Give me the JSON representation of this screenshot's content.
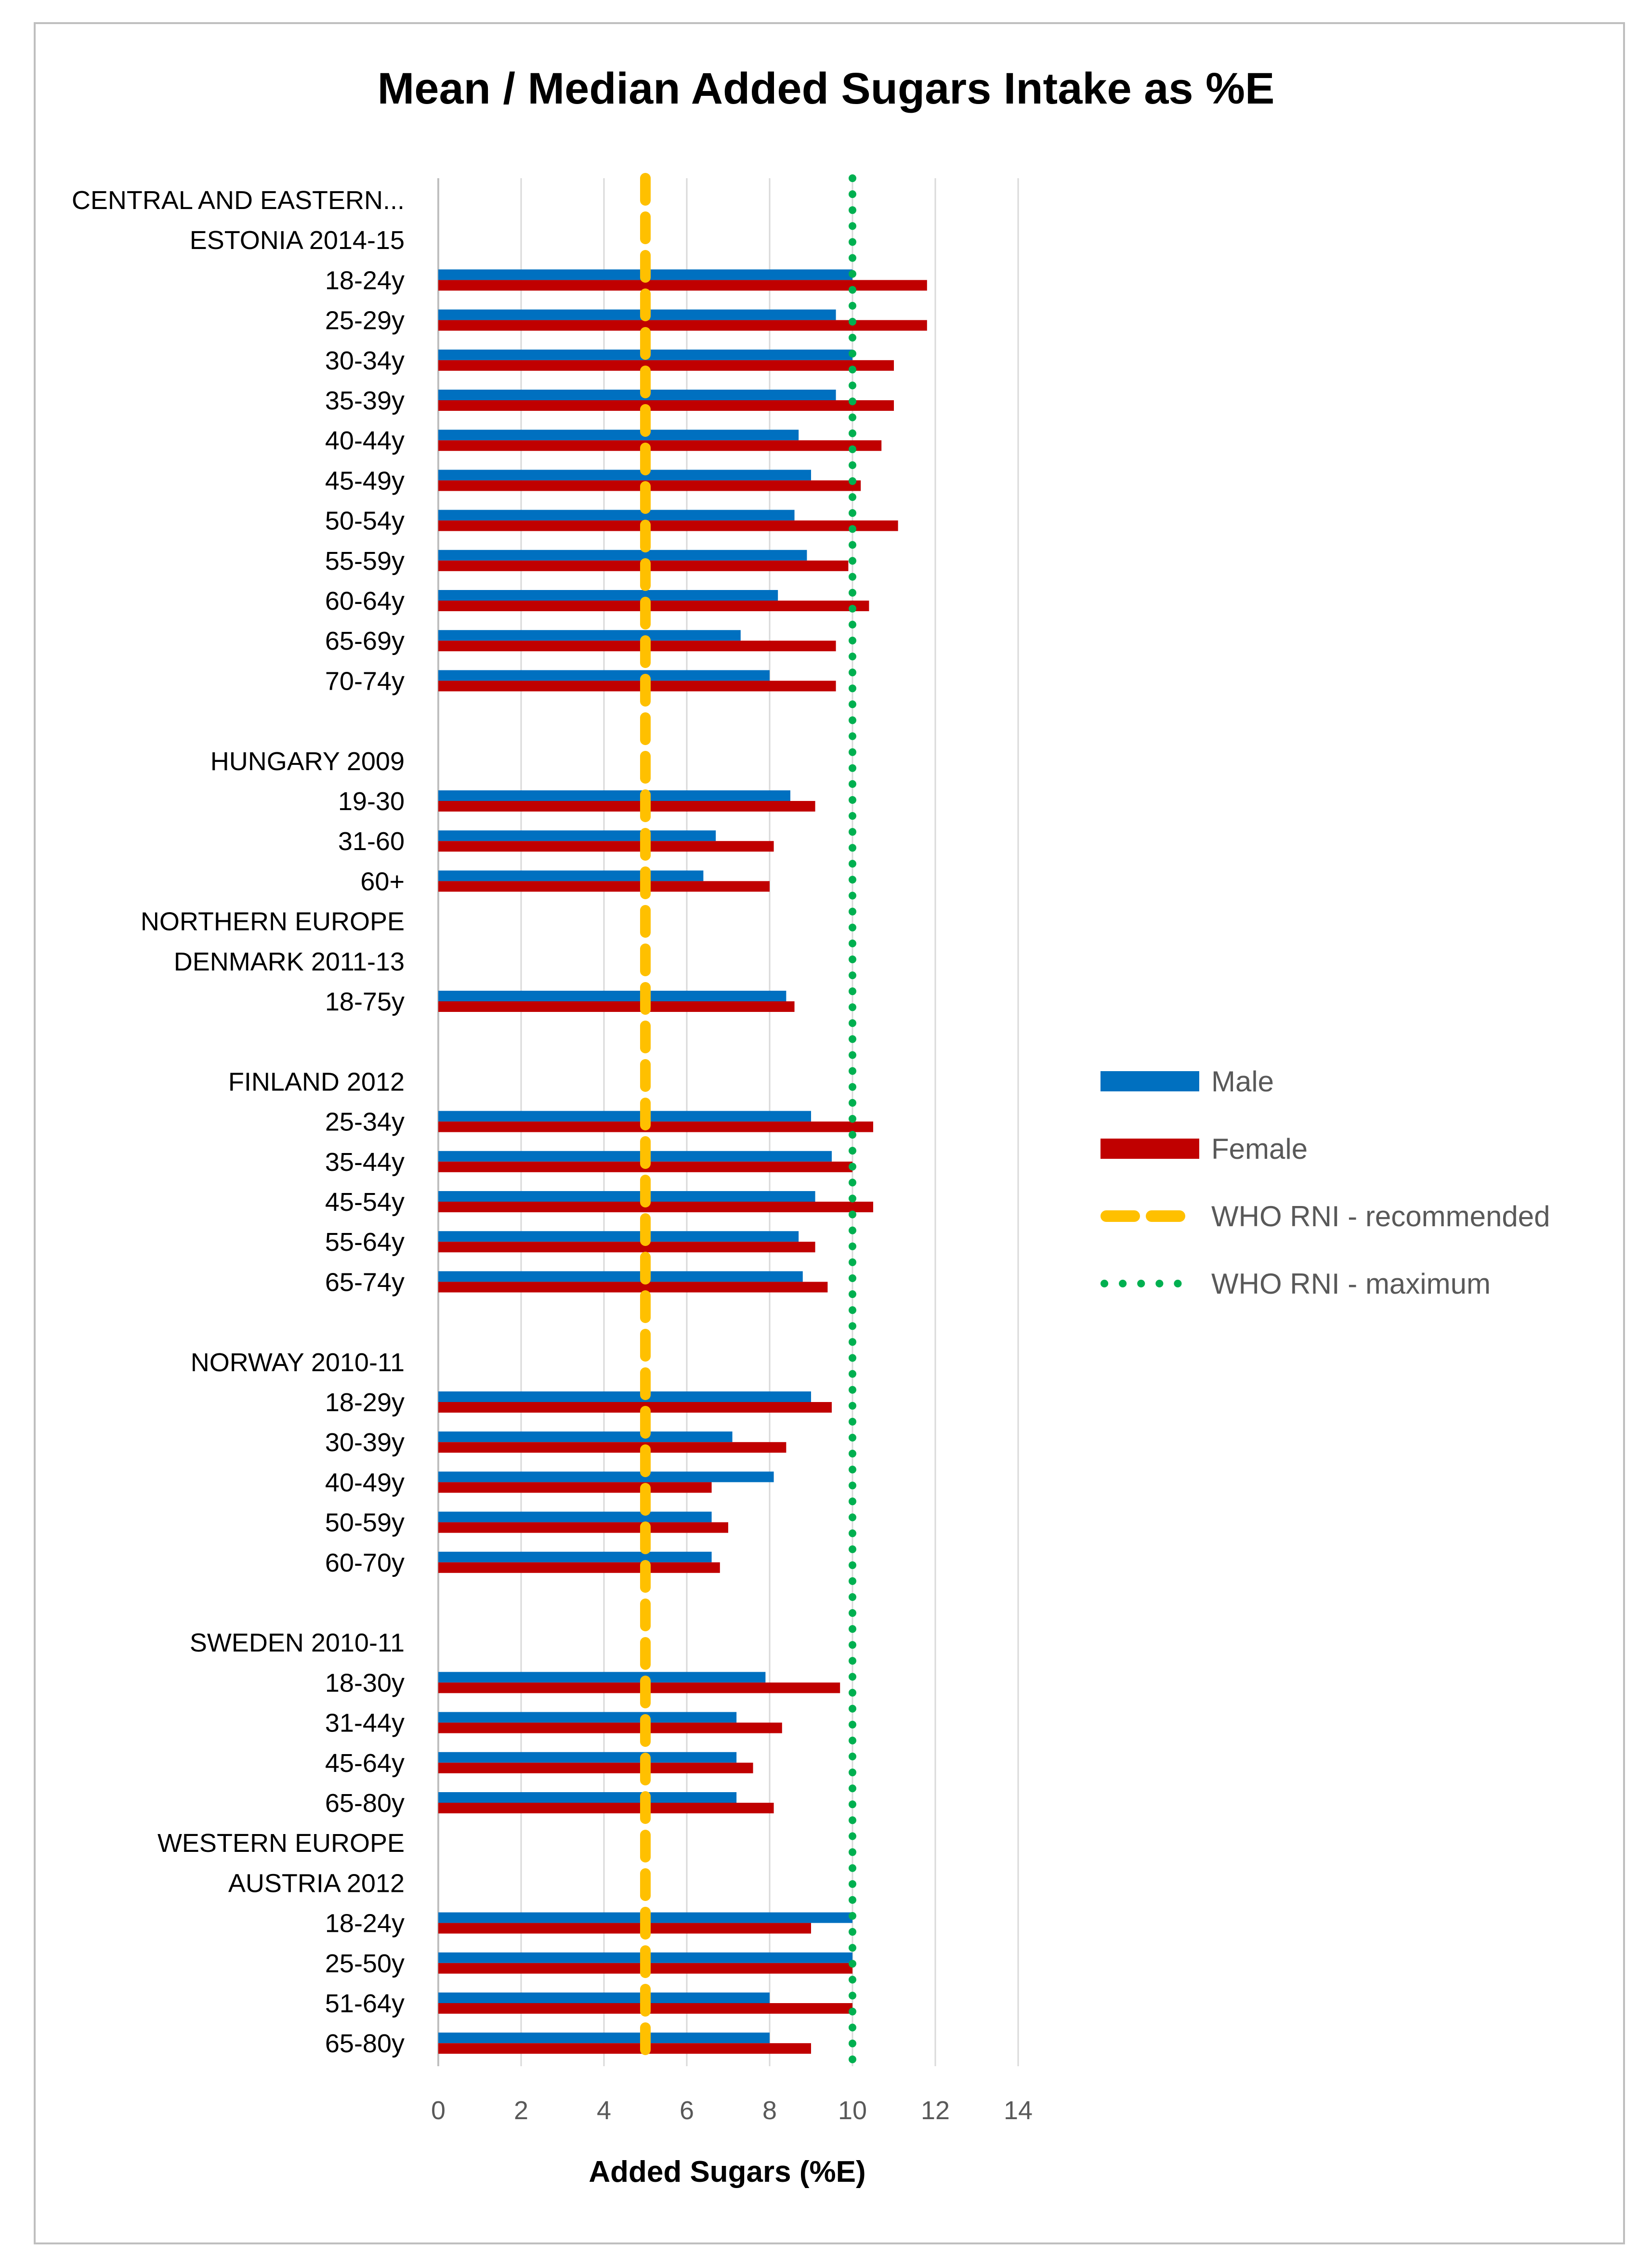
{
  "chart_data": {
    "type": "bar",
    "orientation": "horizontal",
    "title": "Mean / Median Added Sugars Intake as %E",
    "xlabel": "Added Sugars (%E)",
    "ylabel": "",
    "xlim": [
      0,
      14
    ],
    "x_ticks": [
      "0",
      "2",
      "4",
      "6",
      "8",
      "10",
      "12",
      "14"
    ],
    "grid": "vertical",
    "legend_position": "right",
    "colors": {
      "male": "#0070C0",
      "female": "#C00000",
      "recommended": "#FFC000",
      "maximum": "#00B050",
      "grid": "#D9D9D9",
      "axis": "#BFBFBF",
      "frame": "#BFBFBF"
    },
    "categories": [
      "CENTRAL AND EASTERN...",
      "ESTONIA 2014-15",
      "18-24y",
      "25-29y",
      "30-34y",
      "35-39y",
      "40-44y",
      "45-49y",
      "50-54y",
      "55-59y",
      "60-64y",
      "65-69y",
      "70-74y",
      "",
      "HUNGARY 2009",
      "19-30",
      "31-60",
      "60+",
      "NORTHERN EUROPE",
      "DENMARK 2011-13",
      "18-75y",
      "",
      "FINLAND 2012",
      "25-34y",
      "35-44y",
      "45-54y",
      "55-64y",
      "65-74y",
      "",
      "NORWAY 2010-11",
      "18-29y",
      "30-39y",
      "40-49y",
      "50-59y",
      "60-70y",
      "",
      "SWEDEN 2010-11",
      "18-30y",
      "31-44y",
      "45-64y",
      "65-80y",
      "WESTERN EUROPE",
      "AUSTRIA 2012",
      "18-24y",
      "25-50y",
      "51-64y",
      "65-80y"
    ],
    "series": [
      {
        "name": "Male",
        "values": [
          null,
          null,
          10.0,
          9.6,
          10.0,
          9.6,
          8.7,
          9.0,
          8.6,
          8.9,
          8.2,
          7.3,
          8.0,
          null,
          null,
          8.5,
          6.7,
          6.4,
          null,
          null,
          8.4,
          null,
          null,
          9.0,
          9.5,
          9.1,
          8.7,
          8.8,
          null,
          null,
          9.0,
          7.1,
          8.1,
          6.6,
          6.6,
          null,
          null,
          7.9,
          7.2,
          7.2,
          7.2,
          null,
          null,
          10.0,
          10.0,
          8.0,
          8.0
        ]
      },
      {
        "name": "Female",
        "values": [
          null,
          null,
          11.8,
          11.8,
          11.0,
          11.0,
          10.7,
          10.2,
          11.1,
          9.9,
          10.4,
          9.6,
          9.6,
          null,
          null,
          9.1,
          8.1,
          8.0,
          null,
          null,
          8.6,
          null,
          null,
          10.5,
          10.0,
          10.5,
          9.1,
          9.4,
          null,
          null,
          9.5,
          8.4,
          6.6,
          7.0,
          6.8,
          null,
          null,
          9.7,
          8.3,
          7.6,
          8.1,
          null,
          null,
          9.0,
          10.0,
          10.0,
          9.0
        ]
      }
    ],
    "reference_lines": [
      {
        "name": "WHO RNI - recommended",
        "value": 5,
        "style": "dashed"
      },
      {
        "name": "WHO RNI - maximum",
        "value": 10,
        "style": "dotted"
      }
    ],
    "legend": [
      "Male",
      "Female",
      "WHO RNI - recommended",
      "WHO RNI - maximum"
    ]
  }
}
